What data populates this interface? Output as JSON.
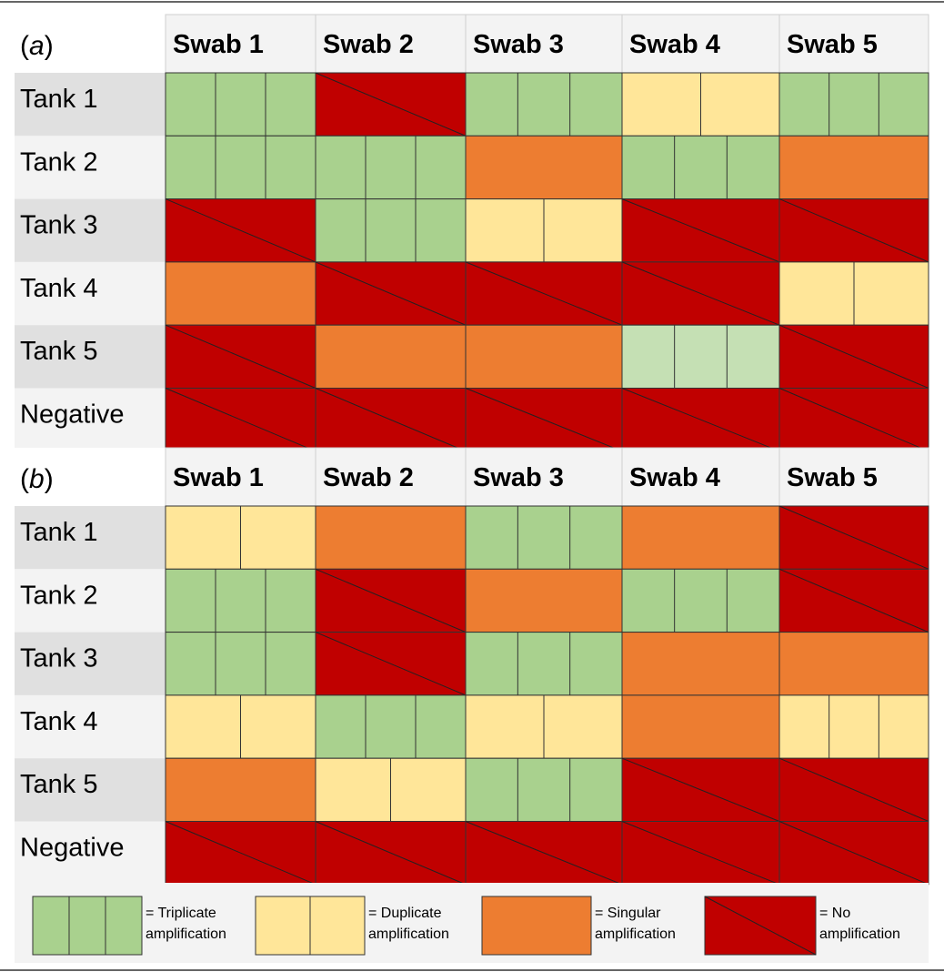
{
  "panels": [
    {
      "label_prefix": "(",
      "label_letter": "a",
      "label_suffix": ")",
      "columns": [
        "Swab 1",
        "Swab 2",
        "Swab 3",
        "Swab 4",
        "Swab 5"
      ],
      "rows": [
        {
          "name": "Tank 1",
          "results": [
            "triplicate",
            "none",
            "triplicate",
            "duplicate",
            "triplicate"
          ]
        },
        {
          "name": "Tank 2",
          "results": [
            "triplicate",
            "triplicate",
            "singular",
            "triplicate",
            "singular"
          ]
        },
        {
          "name": "Tank 3",
          "results": [
            "none",
            "triplicate",
            "duplicate",
            "none",
            "none"
          ]
        },
        {
          "name": "Tank 4",
          "results": [
            "singular",
            "none",
            "none",
            "none",
            "duplicate"
          ]
        },
        {
          "name": "Tank 5",
          "results": [
            "none",
            "singular",
            "singular",
            "triplicate-light",
            "none"
          ]
        },
        {
          "name": "Negative",
          "results": [
            "none",
            "none",
            "none",
            "none",
            "none"
          ]
        }
      ]
    },
    {
      "label_prefix": "(",
      "label_letter": "b",
      "label_suffix": ")",
      "columns": [
        "Swab 1",
        "Swab 2",
        "Swab 3",
        "Swab 4",
        "Swab 5"
      ],
      "rows": [
        {
          "name": "Tank 1",
          "results": [
            "duplicate",
            "singular",
            "triplicate",
            "singular",
            "none"
          ]
        },
        {
          "name": "Tank 2",
          "results": [
            "triplicate",
            "none",
            "singular",
            "triplicate",
            "none"
          ]
        },
        {
          "name": "Tank 3",
          "results": [
            "triplicate",
            "none",
            "triplicate",
            "singular",
            "singular"
          ]
        },
        {
          "name": "Tank 4",
          "results": [
            "duplicate",
            "triplicate",
            "duplicate",
            "singular",
            "triplicate-yellow"
          ]
        },
        {
          "name": "Tank 5",
          "results": [
            "singular",
            "duplicate",
            "triplicate",
            "none",
            "none"
          ]
        },
        {
          "name": "Negative",
          "results": [
            "none",
            "none",
            "none",
            "none",
            "none"
          ]
        }
      ]
    }
  ],
  "legend": [
    {
      "type": "triplicate",
      "line1": "= Triplicate",
      "line2": "amplification"
    },
    {
      "type": "duplicate",
      "line1": "= Duplicate",
      "line2": "amplification"
    },
    {
      "type": "singular",
      "line1": "= Singular",
      "line2": "amplification"
    },
    {
      "type": "none",
      "line1": "= No",
      "line2": "amplification"
    }
  ],
  "colors": {
    "triplicate": "#a9d18e",
    "triplicate-light": "#c5e0b4",
    "triplicate-yellow": "#ffe699",
    "duplicate": "#ffe699",
    "singular": "#ed7d31",
    "none": "#c00000",
    "row-label-dark": "#e0e0e0",
    "row-label-light": "#f3f3f3",
    "header-bg": "#f3f3f3",
    "corner-bg": "#ffffff",
    "legend-bg": "#f3f3f3"
  }
}
